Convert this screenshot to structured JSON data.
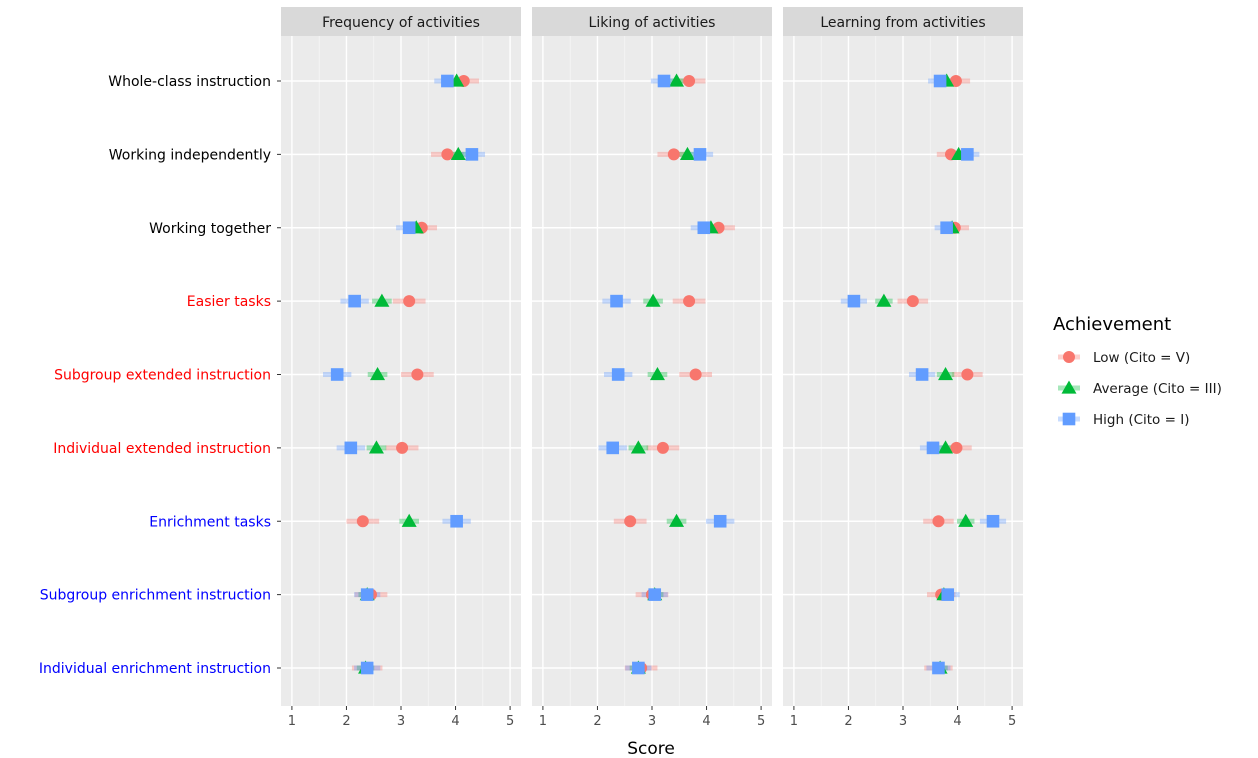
{
  "chart_data": {
    "type": "scatter",
    "xlabel": "Score",
    "xlim": [
      0.8,
      5.2
    ],
    "xticks": [
      1,
      2,
      3,
      4,
      5
    ],
    "facets": [
      "Frequency of activities",
      "Liking of activities",
      "Learning from activities"
    ],
    "categories": [
      "Whole-class instruction",
      "Working independently",
      "Working together",
      "Easier tasks",
      "Subgroup extended instruction",
      "Individual extended instruction",
      "Enrichment tasks",
      "Subgroup enrichment instruction",
      "Individual enrichment instruction"
    ],
    "category_colors": [
      "#000000",
      "#000000",
      "#000000",
      "#ff0000",
      "#ff0000",
      "#ff0000",
      "#0000ff",
      "#0000ff",
      "#0000ff"
    ],
    "legend": {
      "title": "Achievement",
      "position": "right"
    },
    "series": [
      {
        "name": "Low (Cito = V)",
        "color": "#F8766D",
        "shape": "circle",
        "values": [
          [
            4.15,
            3.85,
            3.38,
            3.15,
            3.3,
            3.02,
            2.3,
            2.45,
            2.38
          ],
          [
            3.68,
            3.4,
            4.22,
            3.68,
            3.8,
            3.2,
            2.6,
            3.0,
            2.8
          ],
          [
            3.97,
            3.88,
            3.95,
            3.18,
            4.18,
            3.98,
            3.65,
            3.7,
            3.65
          ]
        ],
        "ci_halfwidth": [
          [
            0.28,
            0.3,
            0.28,
            0.3,
            0.3,
            0.3,
            0.3,
            0.3,
            0.28
          ],
          [
            0.3,
            0.3,
            0.3,
            0.3,
            0.3,
            0.3,
            0.3,
            0.3,
            0.3
          ],
          [
            0.26,
            0.26,
            0.26,
            0.28,
            0.28,
            0.28,
            0.28,
            0.26,
            0.26
          ]
        ]
      },
      {
        "name": "Average (Cito = III)",
        "color": "#00BA38",
        "shape": "triangle",
        "values": [
          [
            4.02,
            4.05,
            3.28,
            2.65,
            2.57,
            2.55,
            3.15,
            2.38,
            2.35
          ],
          [
            3.45,
            3.65,
            4.08,
            3.02,
            3.1,
            2.75,
            3.45,
            3.05,
            2.75
          ],
          [
            3.8,
            4.02,
            3.9,
            2.65,
            3.78,
            3.78,
            4.15,
            3.75,
            3.68
          ]
        ],
        "ci_halfwidth": [
          [
            0.16,
            0.16,
            0.16,
            0.18,
            0.18,
            0.18,
            0.18,
            0.16,
            0.16
          ],
          [
            0.16,
            0.16,
            0.16,
            0.18,
            0.18,
            0.18,
            0.18,
            0.16,
            0.16
          ],
          [
            0.14,
            0.14,
            0.14,
            0.16,
            0.16,
            0.16,
            0.16,
            0.14,
            0.14
          ]
        ]
      },
      {
        "name": "High (Cito = I)",
        "color": "#619CFF",
        "shape": "square",
        "values": [
          [
            3.85,
            4.3,
            3.15,
            2.15,
            1.83,
            2.08,
            4.02,
            2.38,
            2.38
          ],
          [
            3.22,
            3.88,
            3.95,
            2.35,
            2.38,
            2.28,
            4.25,
            3.05,
            2.75
          ],
          [
            3.68,
            4.18,
            3.8,
            2.1,
            3.35,
            3.55,
            4.65,
            3.82,
            3.65
          ]
        ],
        "ci_halfwidth": [
          [
            0.24,
            0.24,
            0.24,
            0.26,
            0.26,
            0.26,
            0.26,
            0.24,
            0.24
          ],
          [
            0.24,
            0.24,
            0.24,
            0.26,
            0.26,
            0.26,
            0.26,
            0.24,
            0.24
          ],
          [
            0.22,
            0.22,
            0.22,
            0.24,
            0.24,
            0.24,
            0.24,
            0.22,
            0.22
          ]
        ]
      }
    ]
  }
}
